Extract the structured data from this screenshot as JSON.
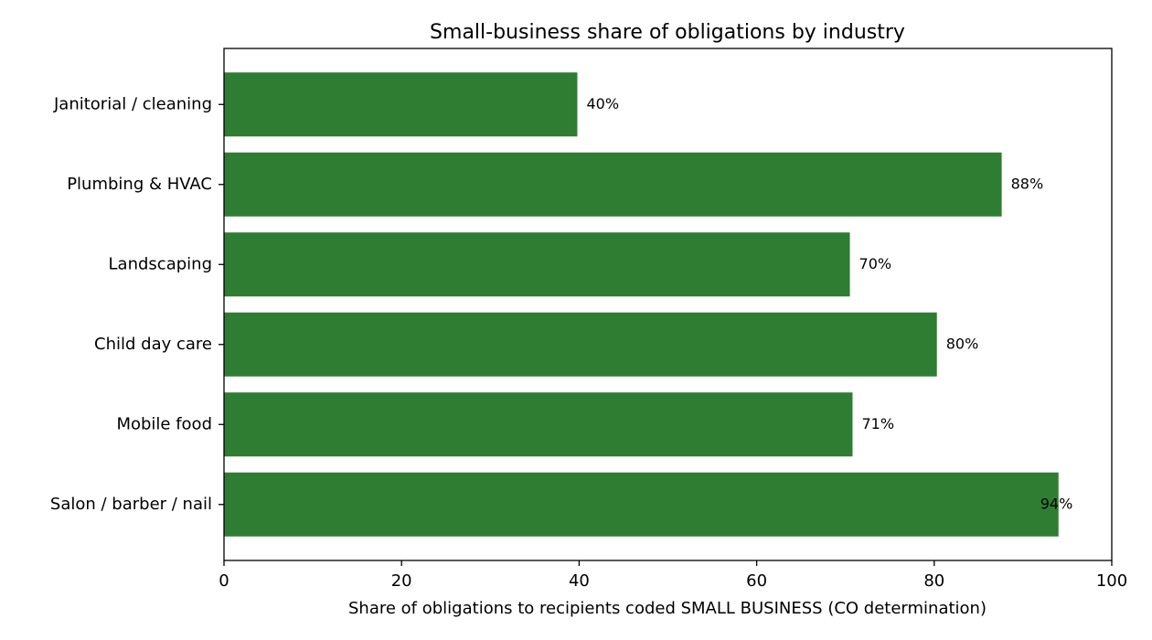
{
  "chart_data": {
    "type": "bar",
    "orientation": "horizontal",
    "title": "Small-business share of obligations by industry",
    "xlabel": "Share of obligations to recipients coded SMALL BUSINESS (CO determination)",
    "ylabel": "",
    "xlim": [
      0,
      100
    ],
    "xticks": [
      0,
      20,
      40,
      60,
      80,
      100
    ],
    "categories": [
      "Janitorial / cleaning",
      "Plumbing & HVAC",
      "Landscaping",
      "Child day care",
      "Mobile food",
      "Salon / barber / nail"
    ],
    "values": [
      39.8,
      87.6,
      70.5,
      80.3,
      70.8,
      94.0
    ],
    "data_labels": [
      "40%",
      "88%",
      "70%",
      "80%",
      "71%",
      "94%"
    ],
    "bar_color": "#2e7d32",
    "grid": false,
    "legend": "none"
  }
}
